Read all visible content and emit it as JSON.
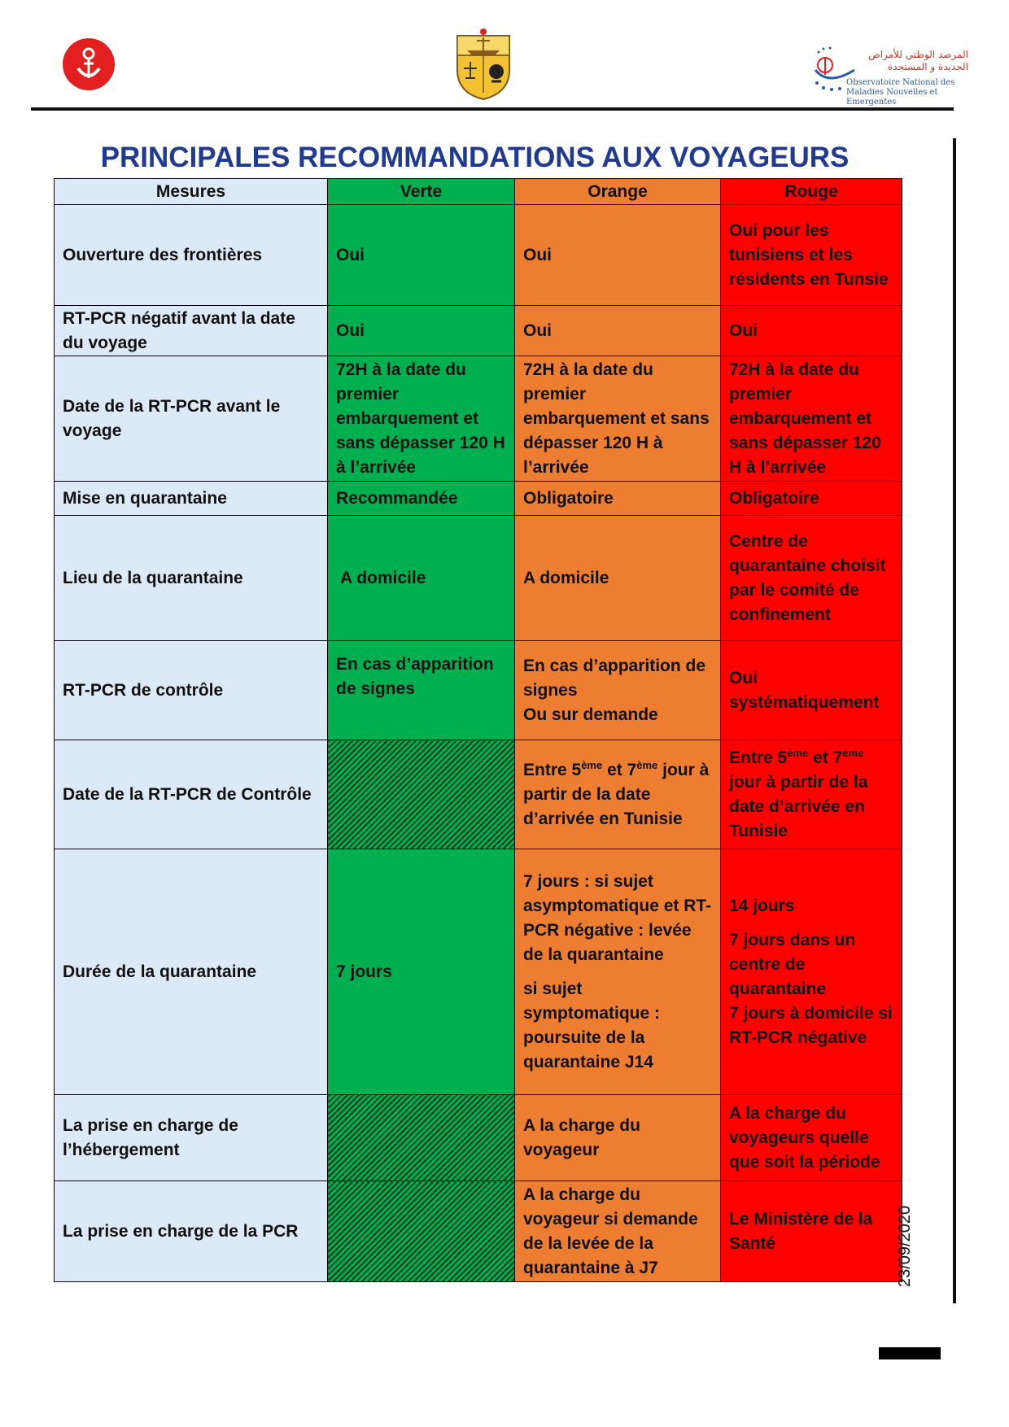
{
  "title": "PRINCIPALES RECOMMANDATIONS AUX VOYAGEURS",
  "date": "23/09/2020",
  "observatory": {
    "name_ar_line1": "المرصد الوطني للأمراض",
    "name_ar_line2": "الجديدة و المستجدة",
    "name_fr_line1": "Observatoire National des",
    "name_fr_line2": "Maladies Nouvelles et Emergentes"
  },
  "colors": {
    "verte": "#00b050",
    "orange": "#ed7d31",
    "rouge": "#ff0000",
    "mesures": "#dce9f6",
    "title": "#1f3a8f"
  },
  "table": {
    "headers": {
      "mesures": "Mesures",
      "verte": "Verte",
      "orange": "Orange",
      "rouge": "Rouge"
    },
    "rows": [
      {
        "mesure": "Ouverture des frontières",
        "verte": "Oui",
        "orange": "Oui",
        "rouge": "Oui pour les tunisiens et les résidents en Tunsie"
      },
      {
        "mesure": "RT-PCR négatif avant la date du voyage",
        "verte": "Oui",
        "orange": "Oui",
        "rouge": "Oui"
      },
      {
        "mesure": "Date de la RT-PCR avant le voyage",
        "verte": "72H à la date du premier embarquement et sans dépasser 120 H à l’arrivée",
        "orange": "72H à la date du premier embarquement et sans dépasser 120 H à l’arrivée",
        "rouge": "72H à la date du premier embarquement et sans dépasser 120 H à l’arrivée"
      },
      {
        "mesure": "Mise en quarantaine",
        "verte": "Recommandée",
        "orange": "Obligatoire",
        "rouge": "Obligatoire"
      },
      {
        "mesure": "Lieu de la quarantaine",
        "verte": "A domicile",
        "orange": "A domicile",
        "rouge": "Centre de quarantaine choisit par le comité de confinement"
      },
      {
        "mesure": "RT-PCR de contrôle",
        "verte": "En cas d’apparition de signes",
        "orange_line1": "En cas d’apparition de signes",
        "orange_line2": "Ou sur demande",
        "rouge": "Oui systématiquement"
      },
      {
        "mesure": "Date de la RT-PCR de Contrôle",
        "orange": {
          "a": "Entre 5",
          "sup1": "ème",
          "b": " et 7",
          "sup2": "ème",
          "c": " jour à partir de la date d’arrivée en Tunisie"
        },
        "rouge": {
          "a": "Entre 5",
          "sup1": "ème",
          "b": " et 7",
          "sup2": "ème",
          "c": " jour à partir de la date d’arrivée en Tunisie"
        }
      },
      {
        "mesure": "Durée de la quarantaine",
        "verte": "7 jours",
        "orange_p1": "7 jours : si sujet asymptomatique et RT-PCR négative : levée de la quarantaine",
        "orange_p2": "si sujet symptomatique : poursuite de la quarantaine J14",
        "rouge_p1": "14 jours",
        "rouge_p2": "7 jours dans un centre de quarantaine",
        "rouge_p3": "7 jours à domicile si RT-PCR négative"
      },
      {
        "mesure": "La prise en charge de l’hébergement",
        "orange": "A la charge du voyageur",
        "rouge": "A la charge du voyageurs quelle que soit la période"
      },
      {
        "mesure": "La prise en charge de la PCR",
        "orange": "A la charge du voyageur si demande de la levée de la quarantaine à J7",
        "rouge": "Le Ministère de la Santé"
      }
    ]
  }
}
